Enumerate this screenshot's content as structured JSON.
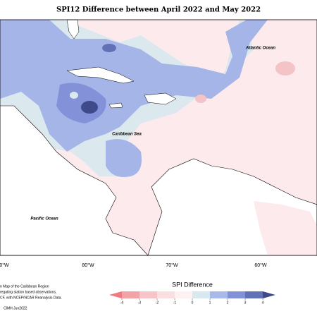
{
  "title": "SPI12 Difference between April 2022 and May 2022",
  "map": {
    "labels": [
      "Atlantic Ocean",
      "Caribbean Sea",
      "Pacific Ocean"
    ],
    "longitudes": [
      "0°W",
      "80°W",
      "70°W",
      "60°W"
    ]
  },
  "footnote": [
    "n Map of the Caribbean Region",
    "regating station based observations,",
    "CF, with NCEP/NCAR Reanalysis Data.",
    "CIMH Jun2022"
  ],
  "legend": {
    "title": "SPI Difference",
    "ticks": [
      -4,
      -3,
      -2,
      -1,
      0,
      1,
      2,
      3,
      4
    ],
    "colors": [
      "#ef7b80",
      "#f3a3a7",
      "#f7c5c8",
      "#fadfe1",
      "#fdf1f2",
      "#d7e8ee",
      "#a9b9e9",
      "#8391d9",
      "#6270b6",
      "#3e4a8a"
    ]
  }
}
